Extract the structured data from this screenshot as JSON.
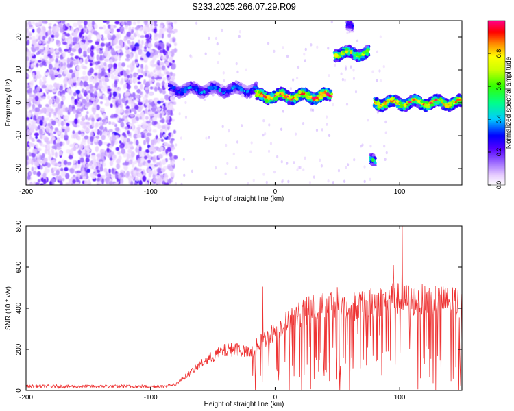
{
  "title": "S233.2025.266.07.29.R09",
  "chart_data": [
    {
      "type": "heatmap",
      "title": "S233.2025.266.07.29.R09",
      "xlabel": "Height of straight line (km)",
      "ylabel": "Frequency (Hz)",
      "xlim": [
        -200,
        150
      ],
      "ylim": [
        -25,
        25
      ],
      "xticks": [
        -200,
        -100,
        0,
        100
      ],
      "yticks": [
        -20,
        -10,
        0,
        10,
        20
      ],
      "colorbar": {
        "label": "Normalized spectral amplitude",
        "range": [
          0.0,
          1.0
        ],
        "ticks": [
          0.0,
          0.2,
          0.4,
          0.6,
          0.8
        ]
      },
      "features": [
        {
          "x_range": [
            -200,
            -80
          ],
          "y_range": [
            -25,
            25
          ],
          "amplitude": 0.12
        },
        {
          "x_range": [
            -85,
            -15
          ],
          "frequency_hz": 4,
          "amplitude": 0.35
        },
        {
          "x_range": [
            -15,
            45
          ],
          "frequency_hz": 2,
          "amplitude": 0.9
        },
        {
          "x_range": [
            48,
            75
          ],
          "frequency_hz": 15,
          "amplitude": 0.7
        },
        {
          "x_range": [
            58,
            62
          ],
          "frequency_hz": 23,
          "amplitude": 0.3
        },
        {
          "x_range": [
            77,
            80
          ],
          "frequency_hz": -18,
          "amplitude": 0.5
        },
        {
          "x_range": [
            80,
            150
          ],
          "frequency_hz": 0,
          "amplitude": 0.8
        }
      ]
    },
    {
      "type": "line",
      "xlabel": "Height of straight line (km)",
      "ylabel": "SNR (10 * v/v)",
      "xlim": [
        -200,
        150
      ],
      "ylim": [
        0,
        800
      ],
      "xticks": [
        -200,
        -100,
        0,
        100
      ],
      "yticks": [
        0,
        200,
        400,
        600,
        800
      ],
      "color": "#ee3333",
      "envelope": {
        "x": [
          -200,
          -90,
          -80,
          -70,
          -60,
          -50,
          -40,
          -30,
          -20,
          -15,
          -10,
          -5,
          0,
          10,
          20,
          30,
          40,
          50,
          60,
          70,
          80,
          90,
          100,
          110,
          120,
          130,
          140,
          150
        ],
        "y": [
          20,
          20,
          30,
          80,
          130,
          170,
          200,
          210,
          180,
          220,
          250,
          270,
          300,
          340,
          380,
          410,
          430,
          440,
          420,
          420,
          440,
          450,
          460,
          450,
          450,
          450,
          440,
          430
        ]
      },
      "spikes": [
        {
          "x": -10,
          "y": 505
        },
        {
          "x": 95,
          "y": 610
        },
        {
          "x": 102,
          "y": 800
        }
      ]
    }
  ]
}
